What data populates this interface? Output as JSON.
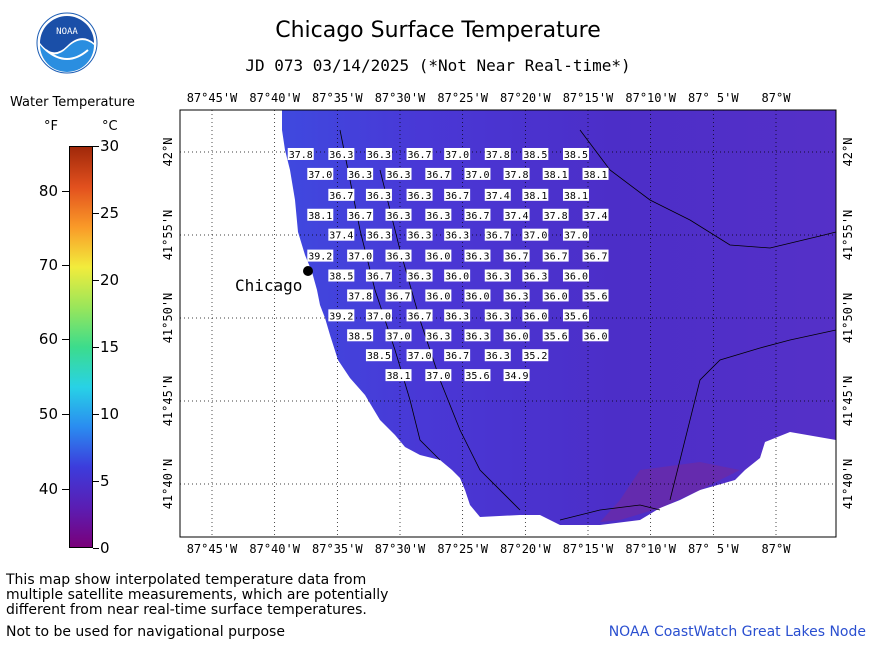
{
  "header": {
    "logo_text": "NOAA",
    "title": "Chicago Surface Temperature",
    "subtitle": "JD 073 03/14/2025 (*Not Near Real-time*)"
  },
  "legend": {
    "title": "Water Temperature",
    "unit_f": "°F",
    "unit_c": "°C",
    "f_ticks": [
      {
        "label": "80",
        "value_c": 26.67
      },
      {
        "label": "70",
        "value_c": 21.11
      },
      {
        "label": "60",
        "value_c": 15.56
      },
      {
        "label": "50",
        "value_c": 10.0
      },
      {
        "label": "40",
        "value_c": 4.44
      }
    ],
    "c_ticks": [
      {
        "label": "30",
        "value_c": 30
      },
      {
        "label": "25",
        "value_c": 25
      },
      {
        "label": "20",
        "value_c": 20
      },
      {
        "label": "15",
        "value_c": 15
      },
      {
        "label": "10",
        "value_c": 10
      },
      {
        "label": "5",
        "value_c": 5
      },
      {
        "label": "0",
        "value_c": 0
      }
    ],
    "range_c": [
      0,
      30
    ]
  },
  "chart_data": {
    "type": "heatmap",
    "lon_labels": [
      "87°45'W",
      "87°40'W",
      "87°35'W",
      "87°30'W",
      "87°25'W",
      "87°20'W",
      "87°15'W",
      "87°10'W",
      "87° 5'W",
      "87°W"
    ],
    "lat_labels": [
      "42°N",
      "41°55'N",
      "41°50'N",
      "41°45'N",
      "41°40'N"
    ],
    "city_label": "Chicago",
    "values": [
      {
        "label": "37.8",
        "lon": -87.632,
        "lat": 41.997
      },
      {
        "label": "36.3",
        "lon": -87.578,
        "lat": 41.997
      },
      {
        "label": "36.3",
        "lon": -87.528,
        "lat": 41.997
      },
      {
        "label": "36.7",
        "lon": -87.474,
        "lat": 41.997
      },
      {
        "label": "37.0",
        "lon": -87.424,
        "lat": 41.997
      },
      {
        "label": "37.8",
        "lon": -87.37,
        "lat": 41.997
      },
      {
        "label": "38.5",
        "lon": -87.32,
        "lat": 41.997
      },
      {
        "label": "38.5",
        "lon": -87.266,
        "lat": 41.997
      },
      {
        "label": "37.0",
        "lon": -87.606,
        "lat": 41.977
      },
      {
        "label": "36.3",
        "lon": -87.553,
        "lat": 41.977
      },
      {
        "label": "36.3",
        "lon": -87.502,
        "lat": 41.977
      },
      {
        "label": "36.7",
        "lon": -87.449,
        "lat": 41.977
      },
      {
        "label": "37.0",
        "lon": -87.397,
        "lat": 41.977
      },
      {
        "label": "37.8",
        "lon": -87.345,
        "lat": 41.977
      },
      {
        "label": "38.1",
        "lon": -87.293,
        "lat": 41.977
      },
      {
        "label": "38.1",
        "lon": -87.24,
        "lat": 41.977
      },
      {
        "label": "36.7",
        "lon": -87.578,
        "lat": 41.956
      },
      {
        "label": "36.3",
        "lon": -87.528,
        "lat": 41.956
      },
      {
        "label": "36.3",
        "lon": -87.474,
        "lat": 41.956
      },
      {
        "label": "36.7",
        "lon": -87.424,
        "lat": 41.956
      },
      {
        "label": "37.4",
        "lon": -87.37,
        "lat": 41.956
      },
      {
        "label": "38.1",
        "lon": -87.32,
        "lat": 41.956
      },
      {
        "label": "38.1",
        "lon": -87.266,
        "lat": 41.956
      },
      {
        "label": "38.1",
        "lon": -87.606,
        "lat": 41.936
      },
      {
        "label": "36.7",
        "lon": -87.553,
        "lat": 41.936
      },
      {
        "label": "36.3",
        "lon": -87.502,
        "lat": 41.936
      },
      {
        "label": "36.3",
        "lon": -87.449,
        "lat": 41.936
      },
      {
        "label": "36.7",
        "lon": -87.397,
        "lat": 41.936
      },
      {
        "label": "37.4",
        "lon": -87.345,
        "lat": 41.936
      },
      {
        "label": "37.8",
        "lon": -87.293,
        "lat": 41.936
      },
      {
        "label": "37.4",
        "lon": -87.24,
        "lat": 41.936
      },
      {
        "label": "37.4",
        "lon": -87.578,
        "lat": 41.916
      },
      {
        "label": "36.3",
        "lon": -87.528,
        "lat": 41.916
      },
      {
        "label": "36.3",
        "lon": -87.474,
        "lat": 41.916
      },
      {
        "label": "36.3",
        "lon": -87.424,
        "lat": 41.916
      },
      {
        "label": "36.7",
        "lon": -87.37,
        "lat": 41.916
      },
      {
        "label": "37.0",
        "lon": -87.32,
        "lat": 41.916
      },
      {
        "label": "37.0",
        "lon": -87.266,
        "lat": 41.916
      },
      {
        "label": "39.2",
        "lon": -87.606,
        "lat": 41.895
      },
      {
        "label": "37.0",
        "lon": -87.553,
        "lat": 41.895
      },
      {
        "label": "36.3",
        "lon": -87.502,
        "lat": 41.895
      },
      {
        "label": "36.0",
        "lon": -87.449,
        "lat": 41.895
      },
      {
        "label": "36.3",
        "lon": -87.397,
        "lat": 41.895
      },
      {
        "label": "36.7",
        "lon": -87.345,
        "lat": 41.895
      },
      {
        "label": "36.7",
        "lon": -87.293,
        "lat": 41.895
      },
      {
        "label": "36.7",
        "lon": -87.24,
        "lat": 41.895
      },
      {
        "label": "38.5",
        "lon": -87.578,
        "lat": 41.875
      },
      {
        "label": "36.7",
        "lon": -87.528,
        "lat": 41.875
      },
      {
        "label": "36.3",
        "lon": -87.474,
        "lat": 41.875
      },
      {
        "label": "36.0",
        "lon": -87.424,
        "lat": 41.875
      },
      {
        "label": "36.3",
        "lon": -87.37,
        "lat": 41.875
      },
      {
        "label": "36.3",
        "lon": -87.32,
        "lat": 41.875
      },
      {
        "label": "36.0",
        "lon": -87.266,
        "lat": 41.875
      },
      {
        "label": "37.8",
        "lon": -87.553,
        "lat": 41.855
      },
      {
        "label": "36.7",
        "lon": -87.502,
        "lat": 41.855
      },
      {
        "label": "36.0",
        "lon": -87.449,
        "lat": 41.855
      },
      {
        "label": "36.0",
        "lon": -87.397,
        "lat": 41.855
      },
      {
        "label": "36.3",
        "lon": -87.345,
        "lat": 41.855
      },
      {
        "label": "36.0",
        "lon": -87.293,
        "lat": 41.855
      },
      {
        "label": "35.6",
        "lon": -87.24,
        "lat": 41.855
      },
      {
        "label": "39.2",
        "lon": -87.578,
        "lat": 41.835
      },
      {
        "label": "37.0",
        "lon": -87.528,
        "lat": 41.835
      },
      {
        "label": "36.7",
        "lon": -87.474,
        "lat": 41.835
      },
      {
        "label": "36.3",
        "lon": -87.424,
        "lat": 41.835
      },
      {
        "label": "36.3",
        "lon": -87.37,
        "lat": 41.835
      },
      {
        "label": "36.0",
        "lon": -87.32,
        "lat": 41.835
      },
      {
        "label": "35.6",
        "lon": -87.266,
        "lat": 41.835
      },
      {
        "label": "38.5",
        "lon": -87.553,
        "lat": 41.815
      },
      {
        "label": "37.0",
        "lon": -87.502,
        "lat": 41.815
      },
      {
        "label": "36.3",
        "lon": -87.449,
        "lat": 41.815
      },
      {
        "label": "36.3",
        "lon": -87.397,
        "lat": 41.815
      },
      {
        "label": "36.0",
        "lon": -87.345,
        "lat": 41.815
      },
      {
        "label": "35.6",
        "lon": -87.293,
        "lat": 41.815
      },
      {
        "label": "36.0",
        "lon": -87.24,
        "lat": 41.815
      },
      {
        "label": "38.5",
        "lon": -87.528,
        "lat": 41.795
      },
      {
        "label": "37.0",
        "lon": -87.474,
        "lat": 41.795
      },
      {
        "label": "36.7",
        "lon": -87.424,
        "lat": 41.795
      },
      {
        "label": "36.3",
        "lon": -87.37,
        "lat": 41.795
      },
      {
        "label": "35.2",
        "lon": -87.32,
        "lat": 41.795
      },
      {
        "label": "38.1",
        "lon": -87.502,
        "lat": 41.775
      },
      {
        "label": "37.0",
        "lon": -87.449,
        "lat": 41.775
      },
      {
        "label": "35.6",
        "lon": -87.397,
        "lat": 41.775
      },
      {
        "label": "34.9",
        "lon": -87.345,
        "lat": 41.775
      }
    ]
  },
  "footer": {
    "note_line1": "This map show interpolated temperature data from",
    "note_line2": "multiple satellite measurements, which are potentially",
    "note_line3": "different from near real-time surface temperatures.",
    "nav_note": "Not to be used for navigational purpose",
    "credit": "NOAA CoastWatch Great Lakes Node"
  }
}
